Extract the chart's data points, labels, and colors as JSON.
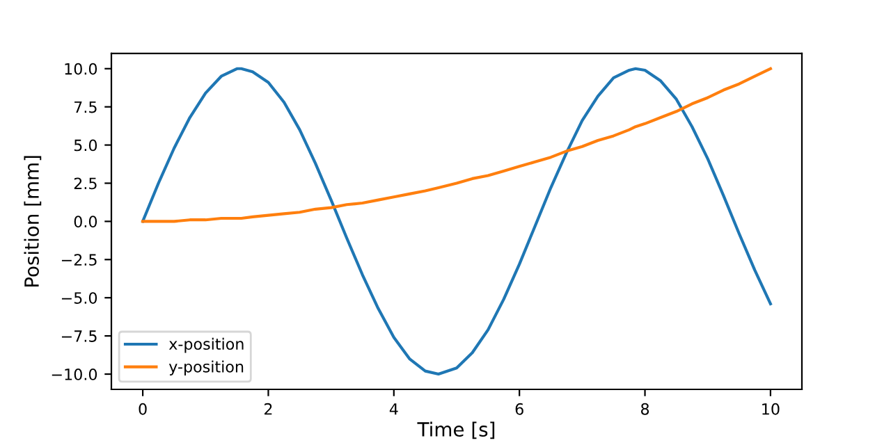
{
  "chart_data": {
    "type": "line",
    "xlabel": "Time [s]",
    "ylabel": "Position [mm]",
    "x": [
      0,
      0.25,
      0.5,
      0.75,
      1,
      1.25,
      1.5,
      1.57,
      1.75,
      2,
      2.25,
      2.5,
      2.75,
      3,
      3.25,
      3.5,
      3.75,
      4,
      4.25,
      4.5,
      4.71,
      5,
      5.25,
      5.5,
      5.75,
      6,
      6.25,
      6.5,
      6.75,
      7,
      7.25,
      7.5,
      7.75,
      7.85,
      8,
      8.25,
      8.5,
      8.75,
      9,
      9.25,
      9.5,
      9.75,
      10
    ],
    "series": [
      {
        "name": "x-position",
        "color": "#1f77b4",
        "values": [
          0,
          2.5,
          4.8,
          6.8,
          8.4,
          9.5,
          10.0,
          10.0,
          9.8,
          9.1,
          7.8,
          6.0,
          3.8,
          1.4,
          -1.1,
          -3.5,
          -5.7,
          -7.6,
          -9.0,
          -9.8,
          -10.0,
          -9.6,
          -8.6,
          -7.1,
          -5.1,
          -2.8,
          -0.3,
          2.2,
          4.5,
          6.6,
          8.2,
          9.4,
          9.9,
          10.0,
          9.9,
          9.2,
          8.0,
          6.2,
          4.1,
          1.7,
          -0.8,
          -3.2,
          -5.4
        ]
      },
      {
        "name": "y-position",
        "color": "#ff7f0e",
        "values": [
          0,
          0.0,
          0.0,
          0.1,
          0.1,
          0.2,
          0.2,
          0.2,
          0.3,
          0.4,
          0.5,
          0.6,
          0.8,
          0.9,
          1.1,
          1.2,
          1.4,
          1.6,
          1.8,
          2.0,
          2.2,
          2.5,
          2.8,
          3.0,
          3.3,
          3.6,
          3.9,
          4.2,
          4.6,
          4.9,
          5.3,
          5.6,
          6.0,
          6.2,
          6.4,
          6.8,
          7.2,
          7.7,
          8.1,
          8.6,
          9.0,
          9.5,
          10.0
        ]
      }
    ],
    "xlim": [
      -0.5,
      10.5
    ],
    "xticks": [
      0,
      2,
      4,
      6,
      8,
      10
    ],
    "ylim": [
      -11,
      11
    ],
    "yticks": [
      {
        "value": -10,
        "label": "−10.0"
      },
      {
        "value": -7.5,
        "label": "−7.5"
      },
      {
        "value": -5,
        "label": "−5.0"
      },
      {
        "value": -2.5,
        "label": "−2.5"
      },
      {
        "value": 0,
        "label": "0.0"
      },
      {
        "value": 2.5,
        "label": "2.5"
      },
      {
        "value": 5,
        "label": "5.0"
      },
      {
        "value": 7.5,
        "label": "7.5"
      },
      {
        "value": 10,
        "label": "10.0"
      }
    ],
    "legend": "lower left",
    "grid": false,
    "marker": "none",
    "line_style": "solid"
  }
}
